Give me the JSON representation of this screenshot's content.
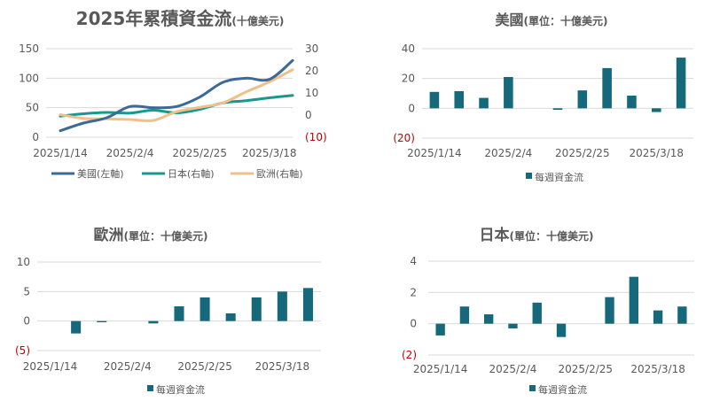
{
  "colors": {
    "us": "#3b6a96",
    "japan": "#17998f",
    "europe": "#f0c08a",
    "bar": "#16697a",
    "negative_label": "#c00000",
    "grid": "#d9d9d9"
  },
  "chart_data": [
    {
      "type": "line",
      "title": "2025年累積資金流",
      "title_suffix": "(十億美元)",
      "x": [
        "2025/1/14",
        "2025/1/21",
        "2025/1/28",
        "2025/2/4",
        "2025/2/11",
        "2025/2/18",
        "2025/2/25",
        "2025/3/4",
        "2025/3/11",
        "2025/3/18",
        "2025/3/25"
      ],
      "x_tick_labels": [
        "2025/1/14",
        "2025/2/4",
        "2025/2/25",
        "2025/3/18"
      ],
      "left_axis": {
        "ylim": [
          0,
          150
        ],
        "ticks": [
          "0",
          "50",
          "100",
          "150"
        ]
      },
      "right_axis": {
        "ylim": [
          -10,
          30
        ],
        "ticks": [
          "(10)",
          "0",
          "10",
          "20",
          "30"
        ]
      },
      "series": [
        {
          "name": "美國(左軸)",
          "axis": "left",
          "color": "#3b6a96",
          "values": [
            11,
            24,
            33,
            52,
            50,
            52,
            68,
            93,
            100,
            98,
            130
          ]
        },
        {
          "name": "日本(右軸)",
          "axis": "right",
          "color": "#17998f",
          "values": [
            -0.5,
            0.6,
            1.2,
            0.9,
            2.2,
            1.0,
            2.6,
            5.5,
            6.5,
            7.8,
            8.9
          ]
        },
        {
          "name": "歐洲(右軸)",
          "axis": "right",
          "color": "#f0c08a",
          "values": [
            0.2,
            -1.5,
            -1.7,
            -2.0,
            -2.4,
            1.5,
            3.5,
            5.5,
            10.5,
            15.0,
            20.5
          ]
        }
      ],
      "grid": true,
      "legend": "bottom"
    },
    {
      "type": "bar",
      "title": "美國",
      "title_suffix": "(單位：十億美元)",
      "x": [
        "2025/1/14",
        "2025/1/21",
        "2025/1/28",
        "2025/2/4",
        "2025/2/11",
        "2025/2/18",
        "2025/2/25",
        "2025/3/4",
        "2025/3/11",
        "2025/3/18",
        "2025/3/25"
      ],
      "x_tick_labels": [
        "2025/1/14",
        "2025/2/4",
        "2025/2/25",
        "2025/3/18"
      ],
      "values": [
        11,
        11.5,
        7,
        21,
        0,
        -1,
        12,
        27,
        8.5,
        -2.5,
        34
      ],
      "ylim": [
        -20,
        40
      ],
      "y_ticks": [
        "(20)",
        "0",
        "20",
        "40"
      ],
      "series_name": "每週資金流",
      "grid": true,
      "legend": "bottom"
    },
    {
      "type": "bar",
      "title": "歐洲",
      "title_suffix": "(單位：十億美元)",
      "x": [
        "2025/1/14",
        "2025/1/21",
        "2025/1/28",
        "2025/2/4",
        "2025/2/11",
        "2025/2/18",
        "2025/2/25",
        "2025/3/4",
        "2025/3/11",
        "2025/3/18",
        "2025/3/25"
      ],
      "x_tick_labels": [
        "2025/1/14",
        "2025/2/4",
        "2025/2/25",
        "2025/3/18"
      ],
      "values": [
        0,
        -2.1,
        -0.2,
        0,
        -0.4,
        2.5,
        4.0,
        1.3,
        4.0,
        5.0,
        5.6
      ],
      "ylim": [
        -5,
        10
      ],
      "y_ticks": [
        "(5)",
        "0",
        "5",
        "10"
      ],
      "series_name": "每週資金流",
      "grid": true,
      "legend": "bottom"
    },
    {
      "type": "bar",
      "title": "日本",
      "title_suffix": "(單位：十億美元)",
      "x": [
        "2025/1/14",
        "2025/1/21",
        "2025/1/28",
        "2025/2/4",
        "2025/2/11",
        "2025/2/18",
        "2025/2/25",
        "2025/3/4",
        "2025/3/11",
        "2025/3/18",
        "2025/3/25"
      ],
      "x_tick_labels": [
        "2025/1/14",
        "2025/2/4",
        "2025/2/25",
        "2025/3/18"
      ],
      "values": [
        -0.75,
        1.1,
        0.6,
        -0.3,
        1.35,
        -0.85,
        0,
        1.7,
        3.0,
        0.85,
        1.1
      ],
      "ylim": [
        -2,
        4
      ],
      "y_ticks": [
        "(2)",
        "0",
        "2",
        "4"
      ],
      "series_name": "每週資金流",
      "grid": true,
      "legend": "bottom"
    }
  ]
}
